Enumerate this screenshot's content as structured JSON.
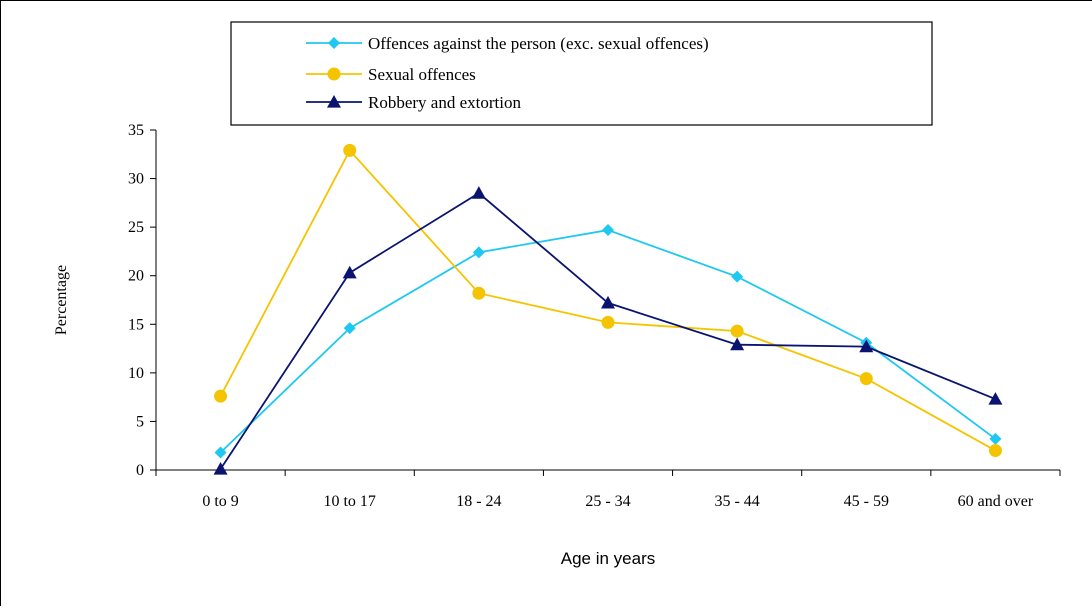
{
  "chart_data": {
    "type": "line",
    "title": "",
    "xlabel": "Age in years",
    "ylabel": "Percentage",
    "ylim": [
      0,
      35
    ],
    "yticks": [
      0,
      5,
      10,
      15,
      20,
      25,
      30,
      35
    ],
    "categories": [
      "0 to 9",
      "10 to 17",
      "18 - 24",
      "25 - 34",
      "35 - 44",
      "45 - 59",
      "60 and over"
    ],
    "legend_position": "top",
    "grid": false,
    "series": [
      {
        "name": "Offences against the person (exc. sexual offences)",
        "color": "#1ec8f0",
        "marker": "diamond",
        "values": [
          1.8,
          14.6,
          22.4,
          24.7,
          19.9,
          13.1,
          3.2
        ]
      },
      {
        "name": "Sexual offences",
        "color": "#f5c400",
        "marker": "circle",
        "values": [
          7.6,
          32.9,
          18.2,
          15.2,
          14.3,
          9.4,
          2.0
        ]
      },
      {
        "name": "Robbery and extortion",
        "color": "#0a1470",
        "marker": "triangle",
        "values": [
          0.1,
          20.3,
          28.5,
          17.2,
          12.9,
          12.7,
          7.3
        ]
      }
    ]
  }
}
